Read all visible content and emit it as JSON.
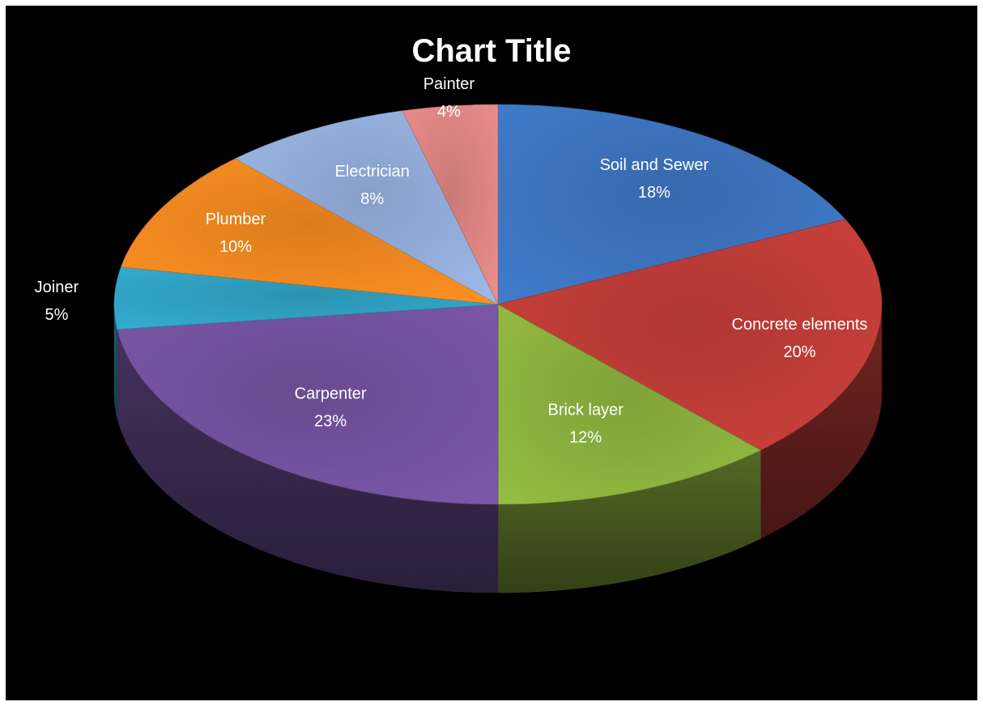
{
  "chart_data": {
    "type": "pie",
    "variant": "3d",
    "title": "Chart Title",
    "background": "#000000",
    "label_color": "#ffffff",
    "slices": [
      {
        "label": "Soil and Sewer",
        "value": 18,
        "percent_label": "18%",
        "color": "#3a6fb6"
      },
      {
        "label": "Concrete elements",
        "value": 20,
        "percent_label": "20%",
        "color": "#b83a36"
      },
      {
        "label": "Brick layer",
        "value": 12,
        "percent_label": "12%",
        "color": "#86a93b"
      },
      {
        "label": "Carpenter",
        "value": 23,
        "percent_label": "23%",
        "color": "#6f4f98"
      },
      {
        "label": "Joiner",
        "value": 5,
        "percent_label": "5%",
        "color": "#2e9bbb"
      },
      {
        "label": "Plumber",
        "value": 10,
        "percent_label": "10%",
        "color": "#e9821f"
      },
      {
        "label": "Electrician",
        "value": 8,
        "percent_label": "8%",
        "color": "#8ea7d2"
      },
      {
        "label": "Painter",
        "value": 4,
        "percent_label": "4%",
        "color": "#d4807e"
      }
    ]
  }
}
